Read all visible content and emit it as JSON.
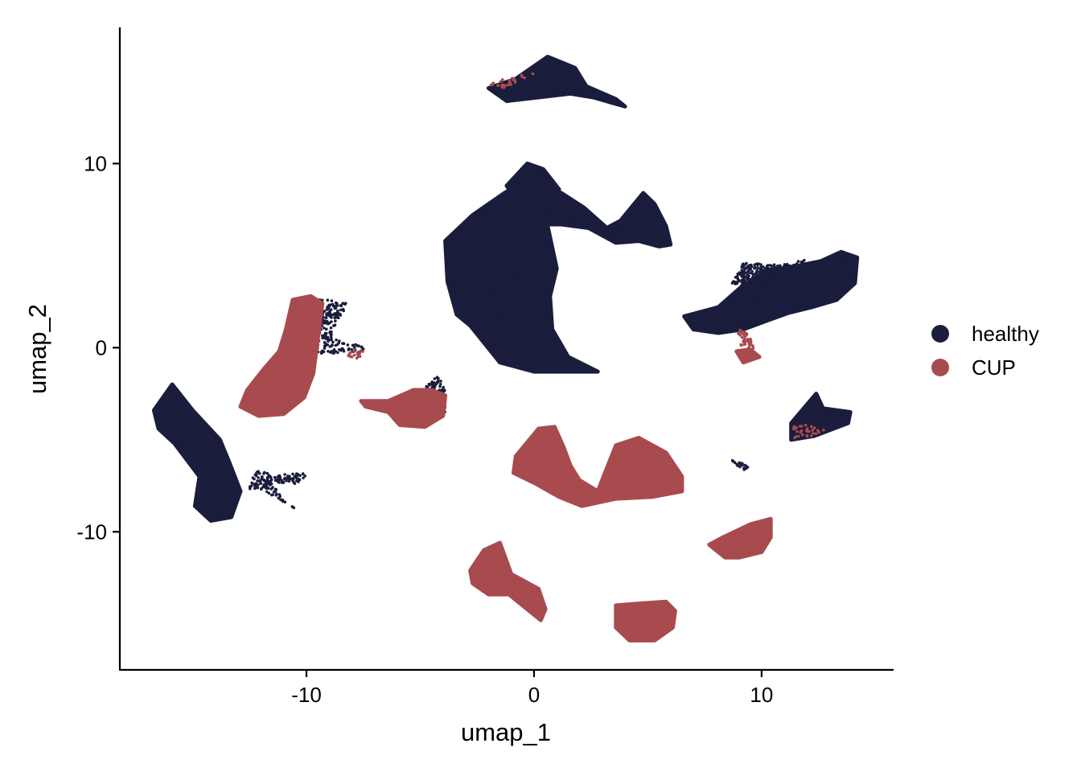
{
  "chart_data": {
    "type": "scatter",
    "title": "",
    "xlabel": "umap_1",
    "ylabel": "umap_2",
    "xlim": [
      -18.2,
      15.8
    ],
    "ylim": [
      -17.5,
      17.4
    ],
    "x_ticks": [
      -10,
      0,
      10
    ],
    "y_ticks": [
      -10,
      0,
      10
    ],
    "x_tick_labels": [
      "-10",
      "0",
      "10"
    ],
    "y_tick_labels": [
      "-10",
      "0",
      "10"
    ],
    "grid": false,
    "legend_position": "right",
    "series": [
      {
        "name": "healthy",
        "color": "#1b1d3d",
        "clusters": [
          {
            "poly": [
              [
                -2,
                14.1
              ],
              [
                -0.8,
                14.6
              ],
              [
                0.6,
                15.8
              ],
              [
                1.8,
                15.2
              ],
              [
                2.3,
                14.2
              ],
              [
                3.6,
                13.5
              ],
              [
                4,
                13.1
              ],
              [
                2.6,
                13.6
              ],
              [
                1.6,
                13.8
              ],
              [
                0.2,
                13.6
              ],
              [
                -1.2,
                13.4
              ]
            ],
            "n": 500,
            "outline": true
          },
          {
            "poly": [
              [
                -2.7,
                7.2
              ],
              [
                -3.9,
                5.8
              ],
              [
                -3.8,
                3.6
              ],
              [
                -3.4,
                1.8
              ],
              [
                -2.8,
                1.2
              ],
              [
                -1.5,
                -0.8
              ],
              [
                0,
                -1.3
              ],
              [
                1.5,
                -1.3
              ],
              [
                2.8,
                -1.3
              ],
              [
                1.5,
                -0.5
              ],
              [
                0.8,
                1
              ],
              [
                0.7,
                2.8
              ],
              [
                1,
                4.3
              ],
              [
                0.6,
                6.6
              ],
              [
                0.2,
                8.1
              ],
              [
                -0.6,
                8.9
              ],
              [
                -1.3,
                8.4
              ]
            ],
            "n": 3500,
            "outline": true
          },
          {
            "poly": [
              [
                -1.2,
                8.8
              ],
              [
                -0.3,
                10
              ],
              [
                0.4,
                9.7
              ],
              [
                1.1,
                8.6
              ],
              [
                1,
                7.3
              ],
              [
                0.3,
                7.1
              ],
              [
                -0.5,
                7.4
              ]
            ],
            "n": 400,
            "outline": true
          },
          {
            "poly": [
              [
                0.3,
                8.5
              ],
              [
                1.2,
                8.4
              ],
              [
                2.2,
                7.6
              ],
              [
                3.2,
                6.5
              ],
              [
                3.8,
                6.9
              ],
              [
                4.8,
                8.4
              ],
              [
                5.3,
                7.8
              ],
              [
                5.8,
                6.6
              ],
              [
                6,
                5.6
              ],
              [
                5.5,
                5.5
              ],
              [
                4.6,
                5.8
              ],
              [
                3.6,
                5.7
              ],
              [
                2.4,
                6.5
              ],
              [
                1.2,
                6.7
              ],
              [
                0.4,
                6.7
              ]
            ],
            "n": 1000,
            "outline": true
          },
          {
            "poly": [
              [
                6.6,
                1.7
              ],
              [
                8.1,
                2.2
              ],
              [
                9.2,
                3.4
              ],
              [
                10.3,
                4.2
              ],
              [
                11.4,
                4.4
              ],
              [
                12.6,
                4.7
              ],
              [
                13.5,
                5.2
              ],
              [
                14.2,
                4.9
              ],
              [
                14.1,
                3.5
              ],
              [
                13.3,
                2.6
              ],
              [
                12.2,
                2.2
              ],
              [
                11.2,
                1.9
              ],
              [
                10.3,
                1.5
              ],
              [
                9.2,
                1
              ],
              [
                8.1,
                0.8
              ],
              [
                7,
                1
              ]
            ],
            "n": 1800,
            "outline": true
          },
          {
            "poly": [
              [
                8.7,
                3.5
              ],
              [
                9.2,
                4.6
              ],
              [
                10.8,
                4.5
              ],
              [
                12,
                4.8
              ],
              [
                10.6,
                3.8
              ],
              [
                9.6,
                3.2
              ]
            ],
            "n": 250,
            "outline": false
          },
          {
            "poly": [
              [
                -10.6,
                1.6
              ],
              [
                -10,
                2.6
              ],
              [
                -9,
                2.6
              ],
              [
                -8.1,
                2.4
              ],
              [
                -8.6,
                1.6
              ],
              [
                -8.9,
                0.5
              ],
              [
                -7.6,
                0.1
              ],
              [
                -7.3,
                -0.3
              ],
              [
                -8.7,
                -0.3
              ],
              [
                -9.5,
                -0.4
              ],
              [
                -9.9,
                -1.5
              ],
              [
                -10.3,
                -2.8
              ],
              [
                -10.1,
                -0.6
              ]
            ],
            "n": 400,
            "outline": false
          },
          {
            "poly": [
              [
                -4.8,
                -2.1
              ],
              [
                -4.2,
                -1.5
              ],
              [
                -3.9,
                -2.4
              ],
              [
                -3.9,
                -3.5
              ],
              [
                -4.7,
                -3
              ]
            ],
            "n": 150,
            "outline": false
          },
          {
            "poly": [
              [
                -16.7,
                -3.4
              ],
              [
                -15.9,
                -2
              ],
              [
                -15,
                -3.4
              ],
              [
                -13.8,
                -5
              ],
              [
                -13.4,
                -6.2
              ],
              [
                -12.9,
                -7.8
              ],
              [
                -13.3,
                -9.2
              ],
              [
                -14.2,
                -9.4
              ],
              [
                -14.9,
                -8.6
              ],
              [
                -14.7,
                -7
              ],
              [
                -15.8,
                -5.2
              ],
              [
                -16.5,
                -4.4
              ]
            ],
            "n": 900,
            "outline": true
          },
          {
            "poly": [
              [
                -12.2,
                -6.7
              ],
              [
                -11.2,
                -6.9
              ],
              [
                -9.8,
                -6.8
              ],
              [
                -10.4,
                -7.4
              ],
              [
                -11.6,
                -7.3
              ],
              [
                -11,
                -8.2
              ],
              [
                -10.4,
                -8.8
              ],
              [
                -11.6,
                -8
              ],
              [
                -12.5,
                -7.7
              ],
              [
                -12.5,
                -7.2
              ]
            ],
            "n": 150,
            "outline": false
          },
          {
            "poly": [
              [
                11.3,
                -4.1
              ],
              [
                12.4,
                -2.5
              ],
              [
                12.7,
                -3.3
              ],
              [
                13.9,
                -3.5
              ],
              [
                13.8,
                -4.1
              ],
              [
                12.3,
                -4.8
              ],
              [
                11.3,
                -5
              ]
            ],
            "n": 200,
            "outline": true
          },
          {
            "poly": [
              [
                8.7,
                -6.1
              ],
              [
                9.5,
                -6.4
              ],
              [
                9.3,
                -6.7
              ],
              [
                8.8,
                -6.3
              ]
            ],
            "n": 20,
            "outline": false
          }
        ]
      },
      {
        "name": "CUP",
        "color": "#a84b4e",
        "clusters": [
          {
            "poly": [
              [
                -10.6,
                2.6
              ],
              [
                -9.8,
                2.8
              ],
              [
                -9.3,
                2.4
              ],
              [
                -9.5,
                0.5
              ],
              [
                -9.7,
                -1.4
              ],
              [
                -10.1,
                -2.7
              ],
              [
                -11,
                -3.6
              ],
              [
                -12.1,
                -3.7
              ],
              [
                -12.9,
                -3.2
              ],
              [
                -12.6,
                -2.3
              ],
              [
                -11.9,
                -1.2
              ],
              [
                -11.2,
                -0.2
              ],
              [
                -10.9,
                1
              ]
            ],
            "n": 1400,
            "outline": true
          },
          {
            "poly": [
              [
                -7.6,
                -2.9
              ],
              [
                -6.4,
                -2.9
              ],
              [
                -5.3,
                -2.3
              ],
              [
                -4.5,
                -2.3
              ],
              [
                -3.9,
                -2.6
              ],
              [
                -4,
                -3.7
              ],
              [
                -4.8,
                -4.3
              ],
              [
                -5.9,
                -4.2
              ],
              [
                -6.4,
                -3.5
              ],
              [
                -7.4,
                -3.2
              ]
            ],
            "n": 900,
            "outline": true
          },
          {
            "poly": [
              [
                -0.9,
                -6.8
              ],
              [
                -0.8,
                -5.9
              ],
              [
                0.2,
                -4.4
              ],
              [
                0.9,
                -4.3
              ],
              [
                1.3,
                -5.4
              ],
              [
                1.6,
                -6.4
              ],
              [
                2,
                -7.2
              ],
              [
                2.8,
                -7.8
              ],
              [
                3.6,
                -5.3
              ],
              [
                4.6,
                -4.9
              ],
              [
                5.8,
                -5.7
              ],
              [
                6.5,
                -7
              ],
              [
                6.5,
                -7.8
              ],
              [
                5.2,
                -8.1
              ],
              [
                3.6,
                -8.2
              ],
              [
                2.1,
                -8.6
              ],
              [
                1.1,
                -8.1
              ],
              [
                0.1,
                -7.4
              ]
            ],
            "n": 1700,
            "outline": true
          },
          {
            "poly": [
              [
                7.7,
                -10.7
              ],
              [
                8.3,
                -10.3
              ],
              [
                9.5,
                -9.6
              ],
              [
                10.4,
                -9.3
              ],
              [
                10.4,
                -10.3
              ],
              [
                10,
                -11.1
              ],
              [
                9,
                -11.4
              ],
              [
                8.4,
                -11.4
              ]
            ],
            "n": 700,
            "outline": true
          },
          {
            "poly": [
              [
                -2.8,
                -12.1
              ],
              [
                -2.2,
                -11
              ],
              [
                -1.5,
                -10.6
              ],
              [
                -1,
                -12.3
              ],
              [
                0.2,
                -13.1
              ],
              [
                0.5,
                -14.2
              ],
              [
                0.3,
                -14.8
              ],
              [
                -0.4,
                -14.1
              ],
              [
                -1.1,
                -13.4
              ],
              [
                -2,
                -13.4
              ],
              [
                -2.7,
                -12.8
              ]
            ],
            "n": 700,
            "outline": true
          },
          {
            "poly": [
              [
                3.6,
                -14
              ],
              [
                4.6,
                -13.9
              ],
              [
                5.8,
                -13.8
              ],
              [
                6.2,
                -14.3
              ],
              [
                6.1,
                -15.2
              ],
              [
                5.3,
                -15.9
              ],
              [
                4.2,
                -15.9
              ],
              [
                3.6,
                -15.2
              ]
            ],
            "n": 1000,
            "outline": true
          },
          {
            "poly": [
              [
                9.5,
                -0.1
              ],
              [
                9.9,
                -0.5
              ],
              [
                9.2,
                -0.8
              ],
              [
                8.9,
                -0.2
              ]
            ],
            "n": 60,
            "outline": true
          },
          {
            "poly": [
              [
                8.9,
                1
              ],
              [
                9.4,
                0.9
              ],
              [
                9.7,
                -0.1
              ],
              [
                9.1,
                0.1
              ]
            ],
            "n": 40,
            "outline": false
          },
          {
            "poly": [
              [
                -2.1,
                14.3
              ],
              [
                -1.3,
                14.1
              ],
              [
                -0.5,
                14.6
              ],
              [
                0,
                14.9
              ],
              [
                -0.9,
                14.8
              ]
            ],
            "n": 30,
            "outline": false
          },
          {
            "poly": [
              [
                -8.1,
                -0.1
              ],
              [
                -7.5,
                -0.2
              ],
              [
                -7.7,
                -0.6
              ],
              [
                -8.2,
                -0.5
              ]
            ],
            "n": 20,
            "outline": false
          },
          {
            "poly": [
              [
                11.4,
                -4.2
              ],
              [
                12.1,
                -4.1
              ],
              [
                12.8,
                -4.5
              ],
              [
                12.2,
                -4.8
              ],
              [
                11.4,
                -4.9
              ]
            ],
            "n": 30,
            "outline": false
          }
        ]
      }
    ]
  }
}
